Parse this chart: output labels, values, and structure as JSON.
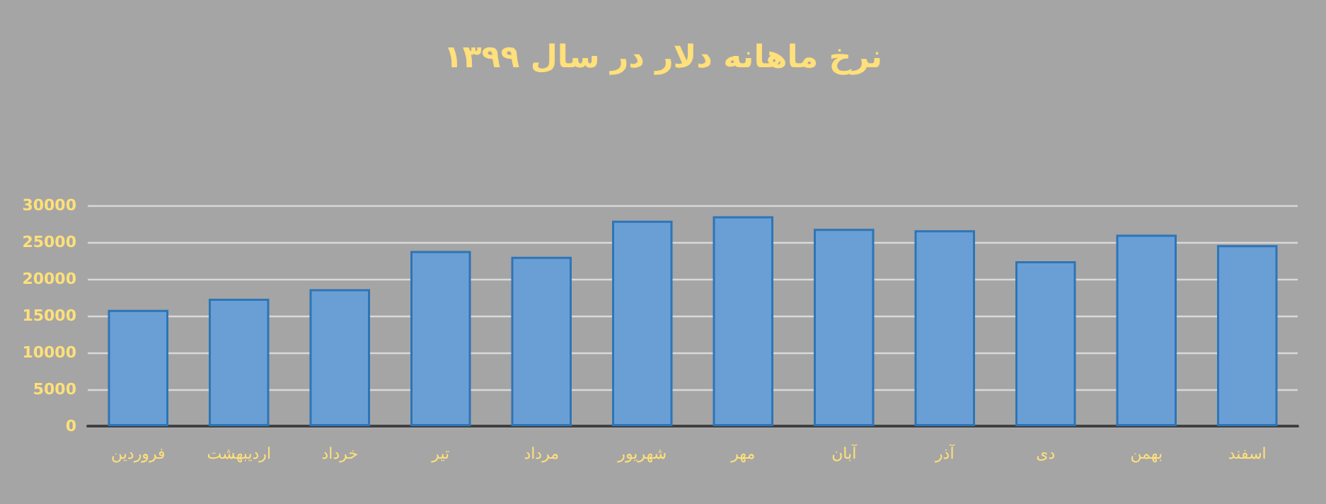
{
  "chart_data": {
    "type": "bar",
    "title": "نرخ ماهانه دلار در سال ۱۳۹۹",
    "categories": [
      "فروردین",
      "اردیبهشت",
      "خرداد",
      "تیر",
      "مرداد",
      "شهریور",
      "مهر",
      "آبان",
      "آذر",
      "دی",
      "بهمن",
      "اسفند"
    ],
    "values": [
      15800,
      17300,
      18600,
      23800,
      23000,
      27900,
      28500,
      26800,
      26600,
      22400,
      26000,
      24600
    ],
    "color": "#6a9fd6",
    "ylim": [
      0,
      30000
    ],
    "yticks": [
      0,
      5000,
      10000,
      15000,
      20000,
      25000,
      30000
    ],
    "grid": "y"
  }
}
